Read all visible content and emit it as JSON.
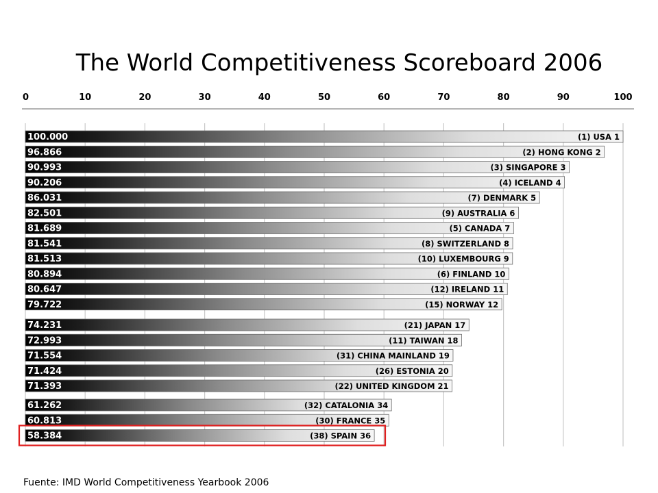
{
  "title": "The World Competitiveness Scoreboard 2006",
  "source": "Fuente: IMD World Competitiveness Yearbook 2006",
  "chart_data": {
    "type": "bar",
    "orientation": "horizontal",
    "title": "The World Competitiveness Scoreboard 2006",
    "xlim": [
      0,
      100
    ],
    "ticks": [
      "0",
      "10",
      "20",
      "30",
      "40",
      "50",
      "60",
      "70",
      "80",
      "90",
      "100"
    ],
    "grid": true,
    "highlight_color": "#e02020",
    "groups": [
      [
        {
          "label": "(1) USA 1",
          "value": 100.0,
          "value_text": "100.000"
        },
        {
          "label": "(2) HONG KONG 2",
          "value": 96.866,
          "value_text": "96.866"
        },
        {
          "label": "(3) SINGAPORE 3",
          "value": 90.993,
          "value_text": "90.993"
        },
        {
          "label": "(4) ICELAND 4",
          "value": 90.206,
          "value_text": "90.206"
        },
        {
          "label": "(7) DENMARK 5",
          "value": 86.031,
          "value_text": "86.031"
        },
        {
          "label": "(9) AUSTRALIA 6",
          "value": 82.501,
          "value_text": "82.501"
        },
        {
          "label": "(5) CANADA 7",
          "value": 81.689,
          "value_text": "81.689"
        },
        {
          "label": "(8) SWITZERLAND 8",
          "value": 81.541,
          "value_text": "81.541"
        },
        {
          "label": "(10) LUXEMBOURG 9",
          "value": 81.513,
          "value_text": "81.513"
        },
        {
          "label": "(6) FINLAND 10",
          "value": 80.894,
          "value_text": "80.894"
        },
        {
          "label": "(12) IRELAND 11",
          "value": 80.647,
          "value_text": "80.647"
        },
        {
          "label": "(15) NORWAY 12",
          "value": 79.722,
          "value_text": "79.722"
        }
      ],
      [
        {
          "label": "(21) JAPAN 17",
          "value": 74.231,
          "value_text": "74.231"
        },
        {
          "label": "(11) TAIWAN 18",
          "value": 72.993,
          "value_text": "72.993"
        },
        {
          "label": "(31) CHINA MAINLAND 19",
          "value": 71.554,
          "value_text": "71.554"
        },
        {
          "label": "(26) ESTONIA 20",
          "value": 71.424,
          "value_text": "71.424"
        },
        {
          "label": "(22) UNITED KINGDOM 21",
          "value": 71.393,
          "value_text": "71.393"
        }
      ],
      [
        {
          "label": "(32) CATALONIA 34",
          "value": 61.262,
          "value_text": "61.262"
        },
        {
          "label": "(30) FRANCE 35",
          "value": 60.813,
          "value_text": "60.813"
        },
        {
          "label": "(38) SPAIN 36",
          "value": 58.384,
          "value_text": "58.384",
          "highlighted": true
        }
      ]
    ]
  }
}
